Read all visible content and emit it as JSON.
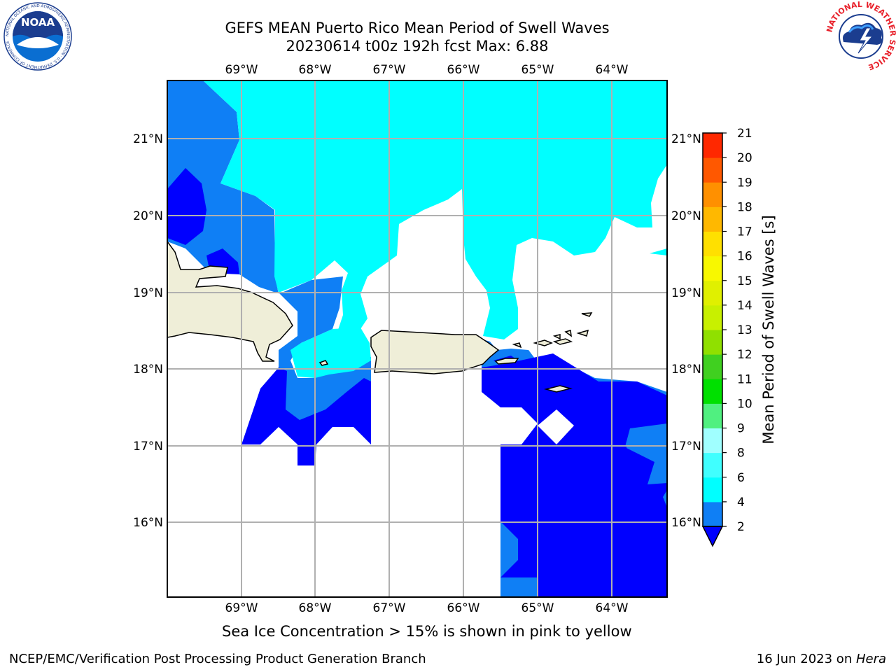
{
  "header": {
    "title_line1": "GEFS MEAN Puerto Rico Mean Period of Swell Waves",
    "title_line2": "20230614 t00z 192h fcst   Max: 6.88"
  },
  "logos": {
    "left": "NOAA",
    "left_ring_text": "NATIONAL OCEANIC AND ATMOSPHERIC ADMINISTRATION · U.S. DEPARTMENT OF COMMERCE",
    "right_ring_text": "NATIONAL WEATHER SERVICE"
  },
  "map": {
    "lon_labels": [
      "69°W",
      "68°W",
      "67°W",
      "66°W",
      "65°W",
      "64°W"
    ],
    "lat_labels": [
      "21°N",
      "20°N",
      "19°N",
      "18°N",
      "17°N",
      "16°N"
    ],
    "colors": {
      "land": "#efeed8",
      "period_2_4": "#0f7ff5",
      "period_4_6": "#00ffff",
      "period_below_2": "#0000ff",
      "grid": "#b0b0b0"
    }
  },
  "colorbar": {
    "title": "Mean Period of Swell Waves [s]",
    "ticks": [
      "2",
      "4",
      "6",
      "8",
      "9",
      "10",
      "11",
      "12",
      "13",
      "14",
      "15",
      "16",
      "17",
      "18",
      "19",
      "20",
      "21"
    ],
    "colors": [
      "#0f7ff5",
      "#00ffff",
      "#40ffff",
      "#a0ffff",
      "#50f080",
      "#00e000",
      "#40d020",
      "#90e000",
      "#c8f000",
      "#e0f000",
      "#f8f800",
      "#ffe000",
      "#ffb800",
      "#ff9000",
      "#ff5800",
      "#ff2800",
      "#ff0000"
    ],
    "under_color": "#0000ff"
  },
  "footer": {
    "note": "Sea Ice Concentration > 15% is shown in pink to yellow",
    "left": "NCEP/EMC/Verification Post Processing Product Generation Branch",
    "right_prefix": "16 Jun 2023 on ",
    "right_host": "Hera"
  }
}
